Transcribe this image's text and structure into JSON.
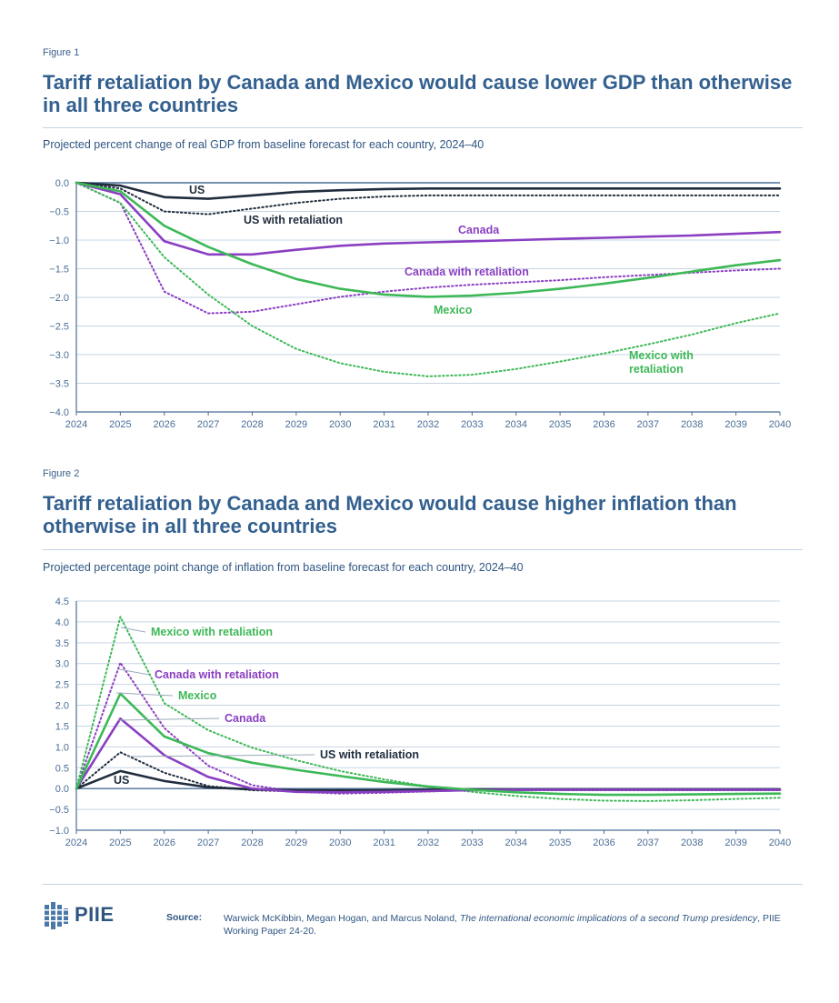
{
  "figure1": {
    "label": "Figure 1",
    "title": "Tariff retaliation by Canada and Mexico would cause lower GDP than otherwise in all three countries",
    "subtitle": "Projected percent change of real GDP from baseline forecast for each country, 2024–40"
  },
  "figure2": {
    "label": "Figure 2",
    "title": "Tariff retaliation by Canada and Mexico would cause higher inflation than otherwise in all three countries",
    "subtitle": "Projected percentage point change of inflation from baseline forecast for each country, 2024–40"
  },
  "footer": {
    "logo_text": "PIIE",
    "source_label": "Source:",
    "source_authors": "Warwick McKibbin, Megan Hogan, and Marcus Noland, ",
    "source_title": "The international economic implications of a second Trump presidency",
    "source_rest": ", PIIE Working Paper 24-20."
  },
  "colors": {
    "us": "#1f2d3d",
    "canada": "#8a3fc2",
    "mexico": "#3db857",
    "axis": "#4a6e96",
    "grid": "#c6d4e3",
    "title": "#33608f"
  },
  "chart_data": [
    {
      "type": "line",
      "x": [
        2024,
        2025,
        2026,
        2027,
        2028,
        2029,
        2030,
        2031,
        2032,
        2033,
        2034,
        2035,
        2036,
        2037,
        2038,
        2039,
        2040
      ],
      "x_ticks": [
        "2024",
        "2025",
        "2026",
        "2027",
        "2028",
        "2029",
        "2030",
        "2031",
        "2032",
        "2033",
        "2034",
        "2035",
        "2036",
        "2037",
        "2038",
        "2039",
        "2040"
      ],
      "ylim": [
        -4.0,
        0.0
      ],
      "y_ticks": [
        "0.0",
        "−0.5",
        "−1.0",
        "−1.5",
        "−2.0",
        "−2.5",
        "−3.0",
        "−3.5",
        "−4.0"
      ],
      "y_tick_values": [
        0.0,
        -0.5,
        -1.0,
        -1.5,
        -2.0,
        -2.5,
        -3.0,
        -3.5,
        -4.0
      ],
      "grid": true,
      "series": [
        {
          "name": "US",
          "country": "us",
          "dashed": false,
          "values": [
            0.0,
            -0.05,
            -0.25,
            -0.28,
            -0.22,
            -0.16,
            -0.13,
            -0.11,
            -0.1,
            -0.1,
            -0.1,
            -0.1,
            -0.1,
            -0.1,
            -0.1,
            -0.1,
            -0.1
          ],
          "label_lines": [
            "US"
          ]
        },
        {
          "name": "US with retaliation",
          "country": "us",
          "dashed": true,
          "values": [
            0.0,
            -0.1,
            -0.5,
            -0.55,
            -0.45,
            -0.35,
            -0.28,
            -0.24,
            -0.22,
            -0.22,
            -0.22,
            -0.22,
            -0.22,
            -0.22,
            -0.22,
            -0.22,
            -0.22
          ],
          "label_lines": [
            "US with retaliation"
          ]
        },
        {
          "name": "Canada",
          "country": "canada",
          "dashed": false,
          "values": [
            0.0,
            -0.2,
            -1.02,
            -1.25,
            -1.25,
            -1.17,
            -1.1,
            -1.06,
            -1.04,
            -1.02,
            -1.0,
            -0.98,
            -0.96,
            -0.94,
            -0.92,
            -0.89,
            -0.86
          ],
          "label_lines": [
            "Canada"
          ]
        },
        {
          "name": "Canada with retaliation",
          "country": "canada",
          "dashed": true,
          "values": [
            0.0,
            -0.35,
            -1.9,
            -2.28,
            -2.25,
            -2.12,
            -1.99,
            -1.9,
            -1.83,
            -1.78,
            -1.74,
            -1.7,
            -1.65,
            -1.61,
            -1.57,
            -1.53,
            -1.5
          ],
          "label_lines": [
            "Canada with retaliation"
          ]
        },
        {
          "name": "Mexico",
          "country": "mexico",
          "dashed": false,
          "values": [
            0.0,
            -0.15,
            -0.75,
            -1.12,
            -1.42,
            -1.68,
            -1.85,
            -1.95,
            -1.99,
            -1.97,
            -1.92,
            -1.85,
            -1.76,
            -1.66,
            -1.55,
            -1.44,
            -1.35
          ],
          "label_lines": [
            "Mexico"
          ]
        },
        {
          "name": "Mexico with retaliation",
          "country": "mexico",
          "dashed": true,
          "values": [
            0.0,
            -0.35,
            -1.3,
            -1.95,
            -2.5,
            -2.9,
            -3.15,
            -3.3,
            -3.38,
            -3.35,
            -3.25,
            -3.12,
            -2.98,
            -2.82,
            -2.65,
            -2.45,
            -2.28
          ],
          "label_lines": [
            "Mexico with",
            "retaliation"
          ]
        }
      ]
    },
    {
      "type": "line",
      "x": [
        2024,
        2025,
        2026,
        2027,
        2028,
        2029,
        2030,
        2031,
        2032,
        2033,
        2034,
        2035,
        2036,
        2037,
        2038,
        2039,
        2040
      ],
      "x_ticks": [
        "2024",
        "2025",
        "2026",
        "2027",
        "2028",
        "2029",
        "2030",
        "2031",
        "2032",
        "2033",
        "2034",
        "2035",
        "2036",
        "2037",
        "2038",
        "2039",
        "2040"
      ],
      "ylim": [
        -1.0,
        4.5
      ],
      "y_ticks": [
        "4.5",
        "4.0",
        "3.5",
        "3.0",
        "2.5",
        "2.0",
        "1.5",
        "1.0",
        "0.5",
        "0.0",
        "−0.5",
        "−1.0"
      ],
      "y_tick_values": [
        4.5,
        4.0,
        3.5,
        3.0,
        2.5,
        2.0,
        1.5,
        1.0,
        0.5,
        0.0,
        -0.5,
        -1.0
      ],
      "grid": true,
      "series": [
        {
          "name": "US",
          "country": "us",
          "dashed": false,
          "values": [
            0.0,
            0.42,
            0.18,
            0.03,
            -0.02,
            -0.04,
            -0.04,
            -0.04,
            -0.03,
            -0.02,
            -0.02,
            -0.02,
            -0.02,
            -0.02,
            -0.02,
            -0.02,
            -0.02
          ],
          "label_lines": [
            "US"
          ]
        },
        {
          "name": "US with retaliation",
          "country": "us",
          "dashed": true,
          "values": [
            0.0,
            0.87,
            0.38,
            0.06,
            -0.04,
            -0.07,
            -0.07,
            -0.06,
            -0.05,
            -0.04,
            -0.04,
            -0.04,
            -0.04,
            -0.04,
            -0.04,
            -0.04,
            -0.04
          ],
          "label_lines": [
            "US with retaliation"
          ]
        },
        {
          "name": "Canada",
          "country": "canada",
          "dashed": false,
          "values": [
            0.0,
            1.68,
            0.8,
            0.28,
            0.0,
            -0.08,
            -0.09,
            -0.08,
            -0.06,
            -0.04,
            -0.03,
            -0.03,
            -0.03,
            -0.03,
            -0.03,
            -0.03,
            -0.03
          ],
          "label_lines": [
            "Canada"
          ]
        },
        {
          "name": "Canada with retaliation",
          "country": "canada",
          "dashed": true,
          "values": [
            0.0,
            3.02,
            1.45,
            0.55,
            0.08,
            -0.08,
            -0.12,
            -0.1,
            -0.07,
            -0.04,
            -0.03,
            -0.03,
            -0.03,
            -0.03,
            -0.03,
            -0.03,
            -0.03
          ],
          "label_lines": [
            "Canada with retaliation"
          ]
        },
        {
          "name": "Mexico",
          "country": "mexico",
          "dashed": false,
          "values": [
            0.0,
            2.28,
            1.25,
            0.85,
            0.62,
            0.45,
            0.3,
            0.16,
            0.05,
            -0.03,
            -0.09,
            -0.13,
            -0.15,
            -0.15,
            -0.14,
            -0.13,
            -0.12
          ],
          "label_lines": [
            "Mexico"
          ]
        },
        {
          "name": "Mexico with retaliation",
          "country": "mexico",
          "dashed": true,
          "values": [
            0.0,
            4.12,
            2.05,
            1.4,
            0.98,
            0.68,
            0.42,
            0.22,
            0.05,
            -0.08,
            -0.18,
            -0.25,
            -0.29,
            -0.3,
            -0.28,
            -0.25,
            -0.22
          ],
          "label_lines": [
            "Mexico with retaliation"
          ]
        }
      ]
    }
  ]
}
